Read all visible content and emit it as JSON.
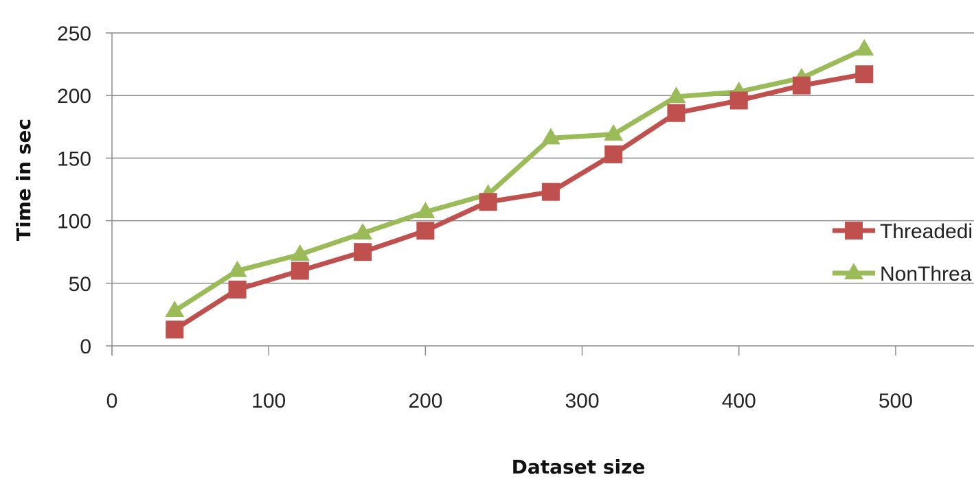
{
  "chart_data": {
    "type": "line",
    "title": "",
    "xlabel": "Dataset size",
    "ylabel": "Time in sec",
    "xlim": [
      0,
      550
    ],
    "ylim": [
      0,
      250
    ],
    "xticks": [
      0,
      100,
      200,
      300,
      400,
      500
    ],
    "yticks": [
      0,
      50,
      100,
      150,
      200,
      250
    ],
    "grid": "horizontal",
    "legend_position": "right",
    "series": [
      {
        "name": "Threadedi",
        "color": "#c0504d",
        "marker": "square",
        "x": [
          40,
          80,
          120,
          160,
          200,
          240,
          280,
          320,
          360,
          400,
          440,
          480
        ],
        "y": [
          13,
          45,
          60,
          75,
          92,
          115,
          123,
          153,
          186,
          196,
          208,
          217
        ]
      },
      {
        "name": "NonThrea",
        "color": "#9bbb59",
        "marker": "triangle",
        "x": [
          40,
          80,
          120,
          160,
          200,
          240,
          280,
          320,
          360,
          400,
          440,
          480
        ],
        "y": [
          28,
          60,
          73,
          90,
          107,
          121,
          166,
          169,
          199,
          203,
          214,
          237
        ]
      }
    ]
  }
}
